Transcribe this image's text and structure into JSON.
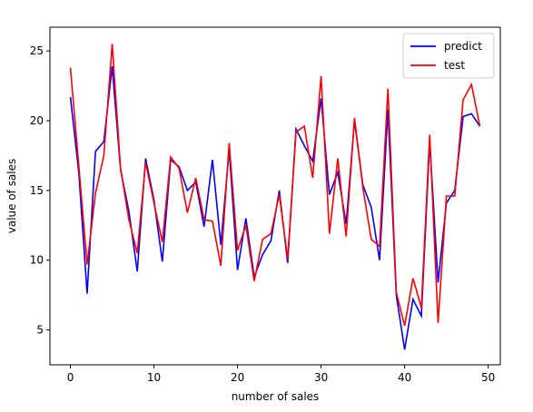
{
  "chart_data": {
    "type": "line",
    "title": "",
    "xlabel": "number of sales",
    "ylabel": "value of sales",
    "xlim": [
      -2.45,
      51.45
    ],
    "ylim": [
      2.5,
      26.7
    ],
    "xticks": [
      0,
      10,
      20,
      30,
      40,
      50
    ],
    "yticks": [
      5,
      10,
      15,
      20,
      25
    ],
    "legend_position": "top-right",
    "grid": false,
    "x": [
      0,
      1,
      2,
      3,
      4,
      5,
      6,
      7,
      8,
      9,
      10,
      11,
      12,
      13,
      14,
      15,
      16,
      17,
      18,
      19,
      20,
      21,
      22,
      23,
      24,
      25,
      26,
      27,
      28,
      29,
      30,
      31,
      32,
      33,
      34,
      35,
      36,
      37,
      38,
      39,
      40,
      41,
      42,
      43,
      44,
      45,
      46,
      47,
      48,
      49
    ],
    "series": [
      {
        "name": "predict",
        "color": "#0000ff",
        "values": [
          21.7,
          16.3,
          7.6,
          17.8,
          18.5,
          23.9,
          16.5,
          13.5,
          9.2,
          17.3,
          14.3,
          9.9,
          17.2,
          16.7,
          15.0,
          15.6,
          12.4,
          17.2,
          11.1,
          17.9,
          9.3,
          13.0,
          8.8,
          10.4,
          11.4,
          15.0,
          9.8,
          19.4,
          18.2,
          17.1,
          21.6,
          14.7,
          16.3,
          12.6,
          20.0,
          15.4,
          13.8,
          10.0,
          20.8,
          7.5,
          3.6,
          7.2,
          6.0,
          18.5,
          8.4,
          14.1,
          15.0,
          20.3,
          20.5,
          19.6
        ]
      },
      {
        "name": "test",
        "color": "#ff0000",
        "values": [
          23.8,
          16.8,
          9.7,
          14.8,
          17.5,
          25.5,
          16.6,
          12.9,
          10.5,
          17.0,
          14.1,
          11.3,
          17.4,
          16.6,
          13.4,
          15.9,
          12.9,
          12.8,
          9.6,
          18.4,
          10.7,
          12.5,
          8.5,
          11.5,
          11.9,
          14.7,
          10.1,
          19.2,
          19.6,
          15.9,
          23.2,
          11.9,
          17.3,
          11.7,
          20.2,
          15.2,
          11.5,
          11.0,
          22.3,
          7.7,
          5.3,
          8.7,
          6.6,
          19.0,
          5.5,
          14.6,
          14.6,
          21.5,
          22.6,
          19.6
        ]
      }
    ]
  }
}
